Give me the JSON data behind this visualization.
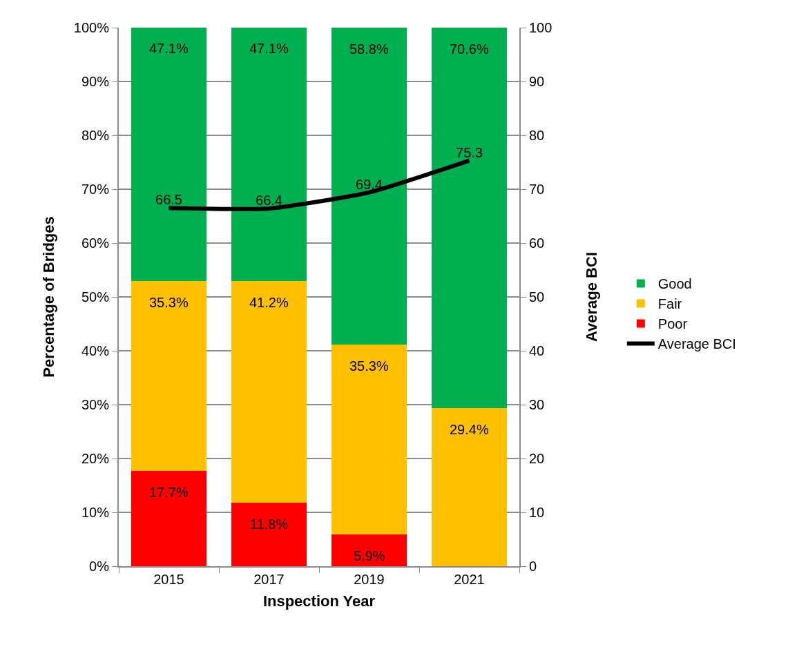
{
  "chart_data": {
    "type": "bar",
    "stacked": true,
    "xlabel": "Inspection Year",
    "ylabel": "Percentage of Bridges",
    "y2label": "Average BCI",
    "categories": [
      "2015",
      "2017",
      "2019",
      "2021"
    ],
    "series": [
      {
        "name": "Poor",
        "color": "#ff0000",
        "values": [
          17.7,
          11.8,
          5.9,
          null
        ],
        "value_labels": [
          "17.7%",
          "11.8%",
          "5.9%",
          null
        ]
      },
      {
        "name": "Fair",
        "color": "#ffc000",
        "values": [
          35.3,
          41.2,
          35.3,
          29.4
        ],
        "value_labels": [
          "35.3%",
          "41.2%",
          "35.3%",
          "29.4%"
        ]
      },
      {
        "name": "Good",
        "color": "#00b050",
        "values": [
          47.1,
          47.1,
          58.8,
          70.6
        ],
        "value_labels": [
          "47.1%",
          "47.1%",
          "58.8%",
          "70.6%"
        ]
      },
      {
        "name": "Average BCI",
        "type": "line",
        "axis": "y2",
        "color": "#000000",
        "values": [
          66.5,
          66.4,
          69.4,
          75.3
        ],
        "value_labels": [
          "66.5",
          "66.4",
          "69.4",
          "75.3"
        ]
      }
    ],
    "ylim": [
      0,
      100
    ],
    "yticks": [
      {
        "value": 0,
        "label": "0%"
      },
      {
        "value": 10,
        "label": "10%"
      },
      {
        "value": 20,
        "label": "20%"
      },
      {
        "value": 30,
        "label": "30%"
      },
      {
        "value": 40,
        "label": "40%"
      },
      {
        "value": 50,
        "label": "50%"
      },
      {
        "value": 60,
        "label": "60%"
      },
      {
        "value": 70,
        "label": "70%"
      },
      {
        "value": 80,
        "label": "80%"
      },
      {
        "value": 90,
        "label": "90%"
      },
      {
        "value": 100,
        "label": "100%"
      }
    ],
    "y2lim": [
      0,
      100
    ],
    "y2ticks": [
      0,
      10,
      20,
      30,
      40,
      50,
      60,
      70,
      80,
      90,
      100
    ],
    "grid": "y",
    "legend": "right"
  }
}
